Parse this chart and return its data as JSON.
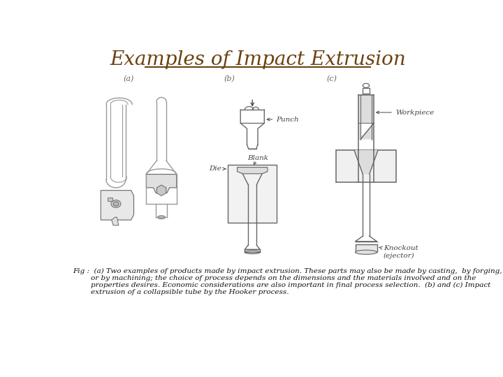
{
  "title": "Examples of Impact Extrusion",
  "title_color": "#6B4210",
  "title_fontsize": 20,
  "bg_color": "#ffffff",
  "label_a": "(a)",
  "label_b": "(b)",
  "label_c": "(c)",
  "label_fontsize": 8,
  "label_color": "#666666",
  "punch_label": "Punch",
  "blank_label": "Blank",
  "die_label": "Die",
  "workpiece_label": "Workpiece",
  "knockout_label": "Knockout\n(ejector)",
  "annotation_color": "#444444",
  "caption_line1": "Fig :  (a) Two examples of products made by impact extrusion. These parts may also be made by casting,  by forging,",
  "caption_line2": "        or by machining; the choice of process depends on the dimensions and the materials involved and on the",
  "caption_line3": "        properties desires. Economic considerations are also important in final process selection.  (b) and (c) Impact",
  "caption_line4": "        extrusion of a collapsible tube by the Hooker process.",
  "caption_fontsize": 7.5,
  "caption_color": "#111111",
  "lc": "#999999",
  "lc_dark": "#666666",
  "fc_light": "#dddddd",
  "fc_mid": "#bbbbbb"
}
